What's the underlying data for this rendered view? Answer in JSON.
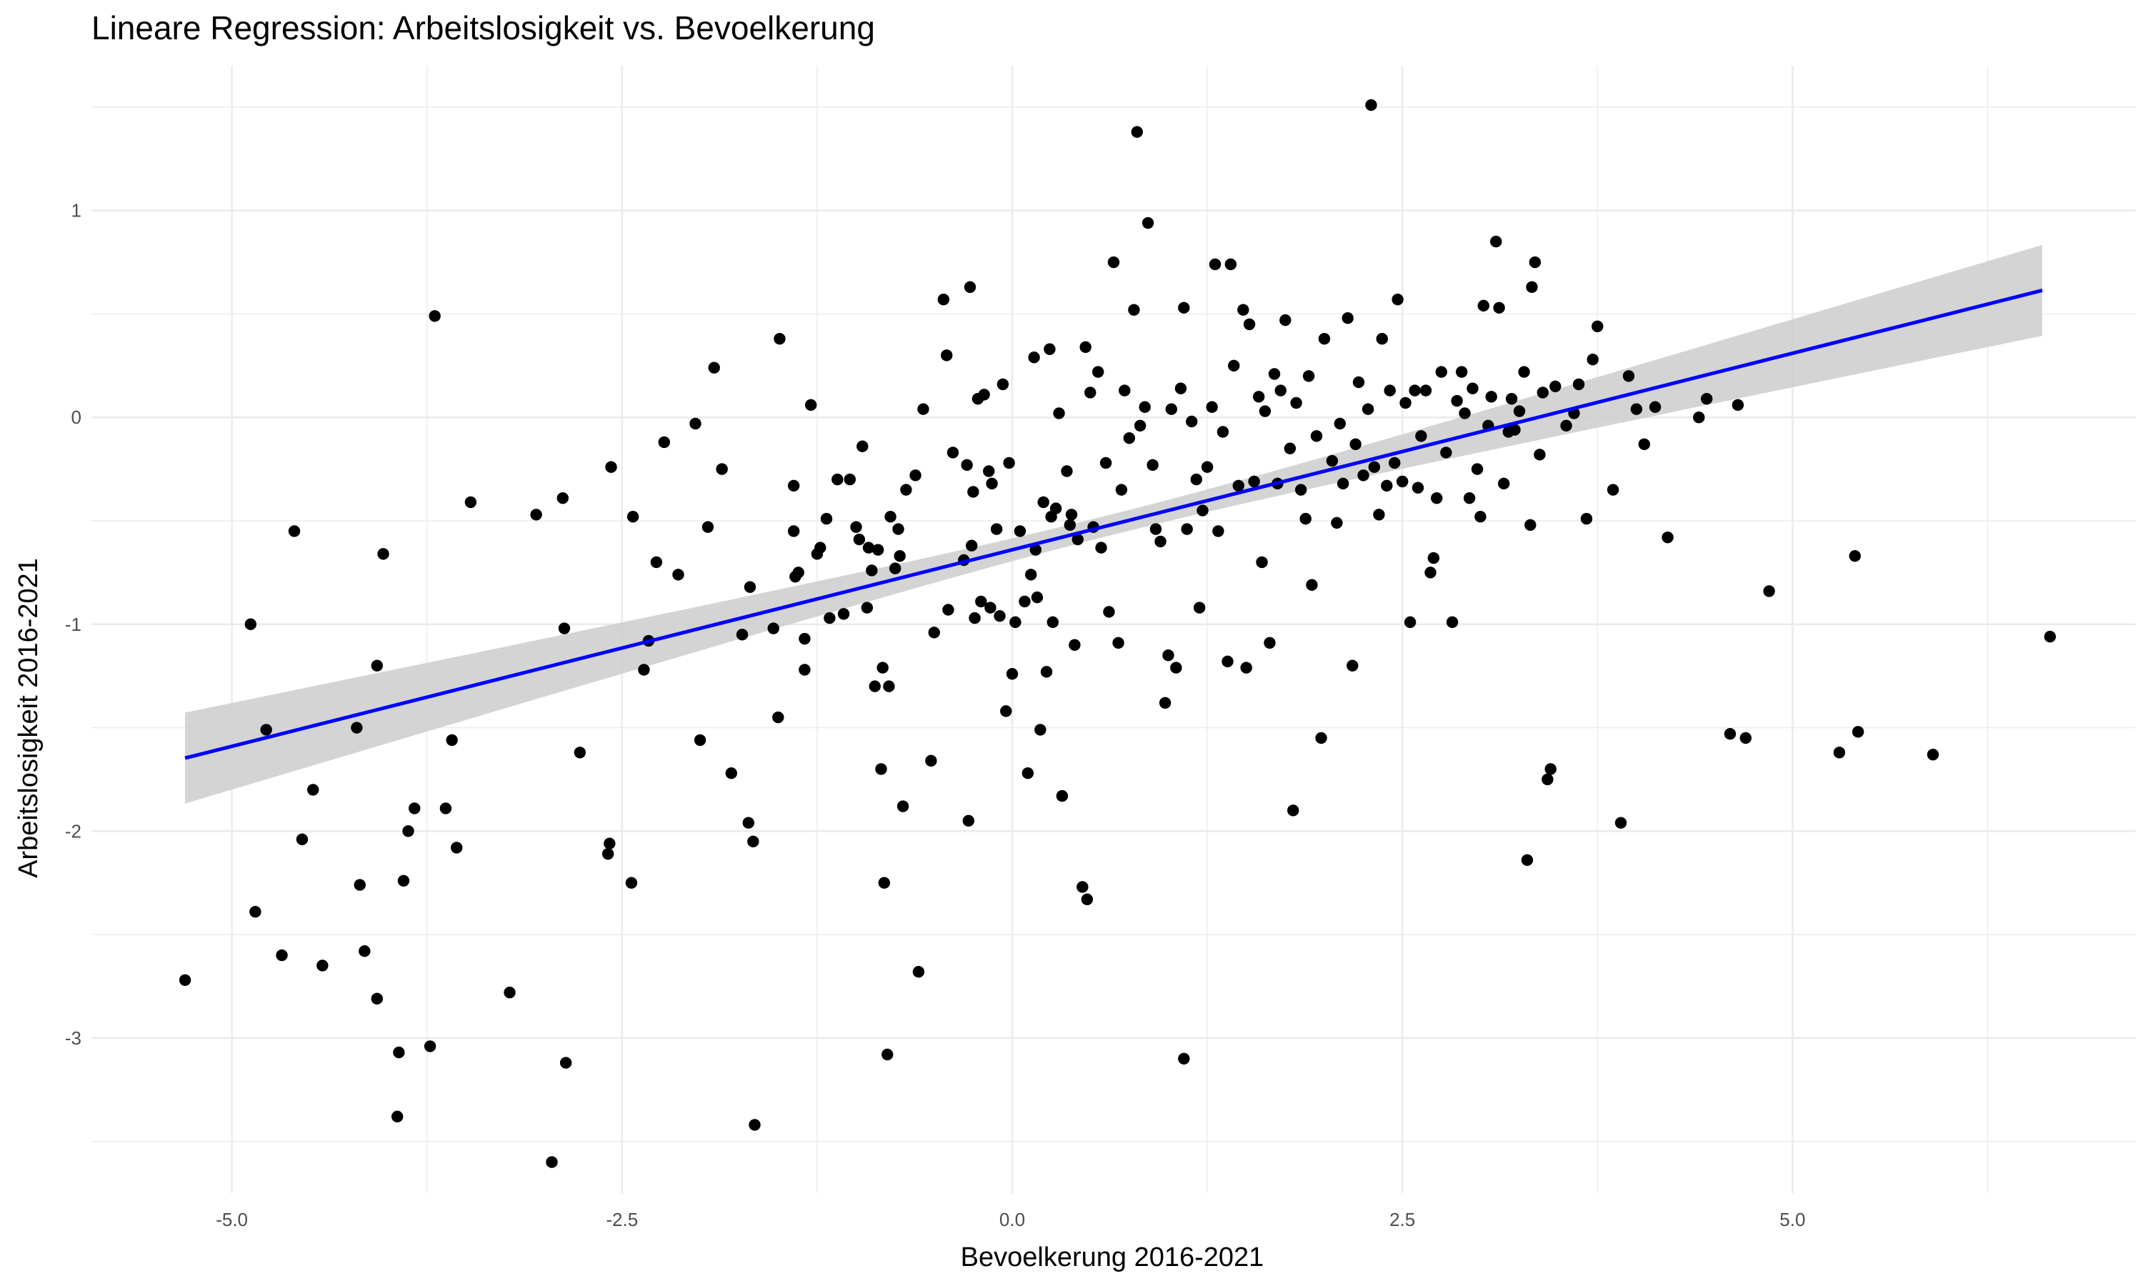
{
  "chart_data": {
    "type": "scatter",
    "title": "Lineare Regression: Arbeitslosigkeit vs. Bevoelkerung",
    "xlabel": "Bevoelkerung 2016-2021",
    "ylabel": "Arbeitslosigkeit 2016-2021",
    "xlim": [
      -5.9,
      7.2
    ],
    "ylim": [
      -3.75,
      1.7
    ],
    "x_ticks": [
      -5.0,
      -2.5,
      0.0,
      2.5,
      5.0
    ],
    "x_tick_labels": [
      "-5.0",
      "-2.5",
      "0.0",
      "2.5",
      "5.0"
    ],
    "y_ticks": [
      1,
      0,
      -1,
      -2,
      -3
    ],
    "y_tick_labels": [
      "1",
      "0",
      "-1",
      "-2",
      "-3"
    ],
    "grid": true,
    "regression": {
      "x_range": [
        -5.3,
        6.6
      ],
      "intercept": -0.64,
      "slope": 0.19,
      "ci_half_width_at_ends": [
        0.22,
        0.22
      ],
      "ci_half_width_at_center": 0.05,
      "ci_center_x": 0.65,
      "line_color": "#0000ff",
      "band_color": "#cccccc"
    },
    "point_color": "#000000",
    "points": [
      [
        -5.3,
        -2.72
      ],
      [
        -4.88,
        -1.0
      ],
      [
        -4.78,
        -1.51
      ],
      [
        -4.85,
        -2.39
      ],
      [
        -4.68,
        -2.6
      ],
      [
        -4.6,
        -0.55
      ],
      [
        -4.55,
        -2.04
      ],
      [
        -4.48,
        -1.8
      ],
      [
        -4.42,
        -2.65
      ],
      [
        -4.2,
        -1.5
      ],
      [
        -4.18,
        -2.26
      ],
      [
        -4.15,
        -2.58
      ],
      [
        -4.07,
        -2.81
      ],
      [
        -4.07,
        -1.2
      ],
      [
        -4.03,
        -0.66
      ],
      [
        -3.94,
        -3.38
      ],
      [
        -3.93,
        -3.07
      ],
      [
        -3.9,
        -2.24
      ],
      [
        -3.87,
        -2.0
      ],
      [
        -3.83,
        -1.89
      ],
      [
        -3.73,
        -3.04
      ],
      [
        -3.7,
        0.49
      ],
      [
        -3.63,
        -1.89
      ],
      [
        -3.59,
        -1.56
      ],
      [
        -3.56,
        -2.08
      ],
      [
        -3.47,
        -0.41
      ],
      [
        -3.22,
        -2.78
      ],
      [
        -3.05,
        -0.47
      ],
      [
        -2.95,
        -3.6
      ],
      [
        -2.88,
        -0.39
      ],
      [
        -2.86,
        -3.12
      ],
      [
        -2.87,
        -1.02
      ],
      [
        -2.77,
        -1.62
      ],
      [
        -2.58,
        -2.06
      ],
      [
        -2.57,
        -0.24
      ],
      [
        -2.59,
        -2.11
      ],
      [
        -2.44,
        -2.25
      ],
      [
        -2.43,
        -0.48
      ],
      [
        -2.36,
        -1.22
      ],
      [
        -2.33,
        -1.08
      ],
      [
        -2.28,
        -0.7
      ],
      [
        -2.23,
        -0.12
      ],
      [
        -2.14,
        -0.76
      ],
      [
        -2.03,
        -0.03
      ],
      [
        -2.0,
        -1.56
      ],
      [
        -1.95,
        -0.53
      ],
      [
        -1.91,
        0.24
      ],
      [
        -1.86,
        -0.25
      ],
      [
        -1.8,
        -1.72
      ],
      [
        -1.73,
        -1.05
      ],
      [
        -1.69,
        -1.96
      ],
      [
        -1.68,
        -0.82
      ],
      [
        -1.66,
        -2.05
      ],
      [
        -1.65,
        -3.42
      ],
      [
        -1.53,
        -1.02
      ],
      [
        -1.5,
        -1.45
      ],
      [
        -1.49,
        0.38
      ],
      [
        -1.4,
        -0.33
      ],
      [
        -1.4,
        -0.55
      ],
      [
        -1.39,
        -0.77
      ],
      [
        -1.37,
        -0.75
      ],
      [
        -1.33,
        -1.07
      ],
      [
        -1.33,
        -1.22
      ],
      [
        -1.29,
        0.06
      ],
      [
        -1.25,
        -0.66
      ],
      [
        -1.23,
        -0.63
      ],
      [
        -1.19,
        -0.49
      ],
      [
        -1.17,
        -0.97
      ],
      [
        -1.12,
        -0.3
      ],
      [
        -1.08,
        -0.95
      ],
      [
        -1.04,
        -0.3
      ],
      [
        -1.0,
        -0.53
      ],
      [
        -0.98,
        -0.59
      ],
      [
        -0.96,
        -0.14
      ],
      [
        -0.93,
        -0.92
      ],
      [
        -0.92,
        -0.63
      ],
      [
        -0.9,
        -0.74
      ],
      [
        -0.88,
        -1.3
      ],
      [
        -0.86,
        -0.64
      ],
      [
        -0.84,
        -1.7
      ],
      [
        -0.83,
        -1.21
      ],
      [
        -0.82,
        -2.25
      ],
      [
        -0.8,
        -3.08
      ],
      [
        -0.79,
        -1.3
      ],
      [
        -0.78,
        -0.48
      ],
      [
        -0.75,
        -0.73
      ],
      [
        -0.73,
        -0.54
      ],
      [
        -0.72,
        -0.67
      ],
      [
        -0.7,
        -1.88
      ],
      [
        -0.68,
        -0.35
      ],
      [
        -0.62,
        -0.28
      ],
      [
        -0.6,
        -2.68
      ],
      [
        -0.57,
        0.04
      ],
      [
        -0.52,
        -1.66
      ],
      [
        -0.5,
        -1.04
      ],
      [
        -0.44,
        0.57
      ],
      [
        -0.42,
        0.3
      ],
      [
        -0.41,
        -0.93
      ],
      [
        -0.38,
        -0.17
      ],
      [
        -0.31,
        -0.69
      ],
      [
        -0.29,
        -0.23
      ],
      [
        -0.28,
        -1.95
      ],
      [
        -0.27,
        0.63
      ],
      [
        -0.26,
        -0.62
      ],
      [
        -0.25,
        -0.36
      ],
      [
        -0.24,
        -0.97
      ],
      [
        -0.22,
        0.09
      ],
      [
        -0.2,
        -0.89
      ],
      [
        -0.18,
        0.11
      ],
      [
        -0.15,
        -0.26
      ],
      [
        -0.14,
        -0.92
      ],
      [
        -0.13,
        -0.32
      ],
      [
        -0.1,
        -0.54
      ],
      [
        -0.08,
        -0.96
      ],
      [
        -0.06,
        0.16
      ],
      [
        -0.04,
        -1.42
      ],
      [
        -0.02,
        -0.22
      ],
      [
        0.0,
        -1.24
      ],
      [
        0.02,
        -0.99
      ],
      [
        0.05,
        -0.55
      ],
      [
        0.08,
        -0.89
      ],
      [
        0.1,
        -1.72
      ],
      [
        0.12,
        -0.76
      ],
      [
        0.14,
        0.29
      ],
      [
        0.15,
        -0.64
      ],
      [
        0.16,
        -0.87
      ],
      [
        0.18,
        -1.51
      ],
      [
        0.2,
        -0.41
      ],
      [
        0.22,
        -1.23
      ],
      [
        0.24,
        0.33
      ],
      [
        0.25,
        -0.48
      ],
      [
        0.26,
        -0.99
      ],
      [
        0.28,
        -0.44
      ],
      [
        0.3,
        0.02
      ],
      [
        0.32,
        -1.83
      ],
      [
        0.35,
        -0.26
      ],
      [
        0.37,
        -0.52
      ],
      [
        0.38,
        -0.47
      ],
      [
        0.4,
        -1.1
      ],
      [
        0.42,
        -0.59
      ],
      [
        0.45,
        -2.27
      ],
      [
        0.47,
        0.34
      ],
      [
        0.48,
        -2.33
      ],
      [
        0.5,
        0.12
      ],
      [
        0.52,
        -0.53
      ],
      [
        0.55,
        0.22
      ],
      [
        0.57,
        -0.63
      ],
      [
        0.6,
        -0.22
      ],
      [
        0.62,
        -0.94
      ],
      [
        0.65,
        0.75
      ],
      [
        0.68,
        -1.09
      ],
      [
        0.7,
        -0.35
      ],
      [
        0.72,
        0.13
      ],
      [
        0.75,
        -0.1
      ],
      [
        0.78,
        0.52
      ],
      [
        0.8,
        1.38
      ],
      [
        0.82,
        -0.04
      ],
      [
        0.85,
        0.05
      ],
      [
        0.87,
        0.94
      ],
      [
        0.9,
        -0.23
      ],
      [
        0.92,
        -0.54
      ],
      [
        0.95,
        -0.6
      ],
      [
        0.98,
        -1.38
      ],
      [
        1.0,
        -1.15
      ],
      [
        1.02,
        0.04
      ],
      [
        1.05,
        -1.21
      ],
      [
        1.08,
        0.14
      ],
      [
        1.1,
        -3.1
      ],
      [
        1.1,
        0.53
      ],
      [
        1.12,
        -0.54
      ],
      [
        1.15,
        -0.02
      ],
      [
        1.18,
        -0.3
      ],
      [
        1.2,
        -0.92
      ],
      [
        1.22,
        -0.45
      ],
      [
        1.25,
        -0.24
      ],
      [
        1.28,
        0.05
      ],
      [
        1.3,
        0.74
      ],
      [
        1.32,
        -0.55
      ],
      [
        1.35,
        -0.07
      ],
      [
        1.38,
        -1.18
      ],
      [
        1.4,
        0.74
      ],
      [
        1.42,
        0.25
      ],
      [
        1.45,
        -0.33
      ],
      [
        1.48,
        0.52
      ],
      [
        1.5,
        -1.21
      ],
      [
        1.52,
        0.45
      ],
      [
        1.55,
        -0.31
      ],
      [
        1.58,
        0.1
      ],
      [
        1.6,
        -0.7
      ],
      [
        1.62,
        0.03
      ],
      [
        1.65,
        -1.09
      ],
      [
        1.68,
        0.21
      ],
      [
        1.7,
        -0.32
      ],
      [
        1.72,
        0.13
      ],
      [
        1.75,
        0.47
      ],
      [
        1.78,
        -0.15
      ],
      [
        1.8,
        -1.9
      ],
      [
        1.82,
        0.07
      ],
      [
        1.85,
        -0.35
      ],
      [
        1.88,
        -0.49
      ],
      [
        1.9,
        0.2
      ],
      [
        1.92,
        -0.81
      ],
      [
        1.95,
        -0.09
      ],
      [
        1.98,
        -1.55
      ],
      [
        2.0,
        0.38
      ],
      [
        2.05,
        -0.21
      ],
      [
        2.08,
        -0.51
      ],
      [
        2.1,
        -0.03
      ],
      [
        2.12,
        -0.32
      ],
      [
        2.15,
        0.48
      ],
      [
        2.18,
        -1.2
      ],
      [
        2.2,
        -0.13
      ],
      [
        2.22,
        0.17
      ],
      [
        2.25,
        -0.28
      ],
      [
        2.28,
        0.04
      ],
      [
        2.3,
        1.51
      ],
      [
        2.32,
        -0.24
      ],
      [
        2.35,
        -0.47
      ],
      [
        2.37,
        0.38
      ],
      [
        2.4,
        -0.33
      ],
      [
        2.42,
        0.13
      ],
      [
        2.45,
        -0.22
      ],
      [
        2.47,
        0.57
      ],
      [
        2.5,
        -0.31
      ],
      [
        2.52,
        0.07
      ],
      [
        2.55,
        -0.99
      ],
      [
        2.58,
        0.13
      ],
      [
        2.6,
        -0.34
      ],
      [
        2.62,
        -0.09
      ],
      [
        2.65,
        0.13
      ],
      [
        2.68,
        -0.75
      ],
      [
        2.7,
        -0.68
      ],
      [
        2.72,
        -0.39
      ],
      [
        2.75,
        0.22
      ],
      [
        2.78,
        -0.17
      ],
      [
        2.82,
        -0.99
      ],
      [
        2.85,
        0.08
      ],
      [
        2.88,
        0.22
      ],
      [
        2.9,
        0.02
      ],
      [
        2.93,
        -0.39
      ],
      [
        2.95,
        0.14
      ],
      [
        2.98,
        -0.25
      ],
      [
        3.0,
        -0.48
      ],
      [
        3.02,
        0.54
      ],
      [
        3.05,
        -0.04
      ],
      [
        3.07,
        0.1
      ],
      [
        3.1,
        0.85
      ],
      [
        3.12,
        0.53
      ],
      [
        3.15,
        -0.32
      ],
      [
        3.18,
        -0.07
      ],
      [
        3.2,
        0.09
      ],
      [
        3.22,
        -0.06
      ],
      [
        3.25,
        0.03
      ],
      [
        3.28,
        0.22
      ],
      [
        3.3,
        -2.14
      ],
      [
        3.32,
        -0.52
      ],
      [
        3.33,
        0.63
      ],
      [
        3.35,
        0.75
      ],
      [
        3.38,
        -0.18
      ],
      [
        3.4,
        0.12
      ],
      [
        3.43,
        -1.75
      ],
      [
        3.45,
        -1.7
      ],
      [
        3.48,
        0.15
      ],
      [
        3.55,
        -0.04
      ],
      [
        3.6,
        0.02
      ],
      [
        3.63,
        0.16
      ],
      [
        3.68,
        -0.49
      ],
      [
        3.72,
        0.28
      ],
      [
        3.75,
        0.44
      ],
      [
        3.85,
        -0.35
      ],
      [
        3.9,
        -1.96
      ],
      [
        3.95,
        0.2
      ],
      [
        4.0,
        0.04
      ],
      [
        4.05,
        -0.13
      ],
      [
        4.12,
        0.05
      ],
      [
        4.2,
        -0.58
      ],
      [
        4.4,
        0.0
      ],
      [
        4.45,
        0.09
      ],
      [
        4.6,
        -1.53
      ],
      [
        4.65,
        0.06
      ],
      [
        4.7,
        -1.55
      ],
      [
        4.85,
        -0.84
      ],
      [
        5.3,
        -1.62
      ],
      [
        5.4,
        -0.67
      ],
      [
        5.42,
        -1.52
      ],
      [
        5.9,
        -1.63
      ],
      [
        6.65,
        -1.06
      ]
    ]
  }
}
